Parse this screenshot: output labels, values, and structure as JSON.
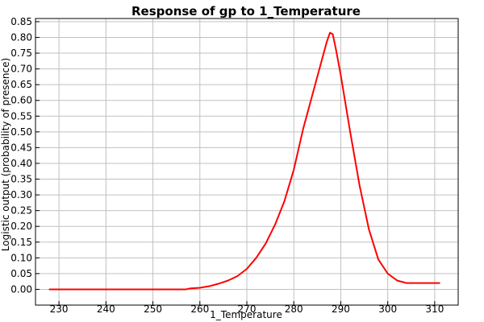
{
  "chart_data": {
    "type": "line",
    "title": "Response of gp to 1_Temperature",
    "xlabel": "1_Temperature",
    "ylabel": "Logistic output (probability of presence)",
    "xlim": [
      225,
      315
    ],
    "ylim": [
      -0.05,
      0.86
    ],
    "x_ticks": [
      "230",
      "240",
      "250",
      "260",
      "270",
      "280",
      "290",
      "300",
      "310"
    ],
    "y_ticks": [
      "0.00",
      "0.05",
      "0.10",
      "0.15",
      "0.20",
      "0.25",
      "0.30",
      "0.35",
      "0.40",
      "0.45",
      "0.50",
      "0.55",
      "0.60",
      "0.65",
      "0.70",
      "0.75",
      "0.80",
      "0.85"
    ],
    "grid": true,
    "series": [
      {
        "color": "#ff0000",
        "x": [
          228,
          240,
          250,
          257,
          258,
          260,
          262,
          264,
          266,
          268,
          270,
          272,
          274,
          276,
          278,
          280,
          282,
          284,
          286,
          287,
          287.7,
          288.3,
          289,
          290,
          291,
          292,
          294,
          296,
          298,
          300,
          302,
          304,
          306,
          308,
          311
        ],
        "y": [
          0.0,
          0.0,
          0.0,
          0.0,
          0.003,
          0.005,
          0.01,
          0.018,
          0.028,
          0.042,
          0.065,
          0.1,
          0.145,
          0.205,
          0.28,
          0.38,
          0.51,
          0.62,
          0.73,
          0.785,
          0.815,
          0.81,
          0.76,
          0.68,
          0.59,
          0.5,
          0.33,
          0.19,
          0.095,
          0.05,
          0.028,
          0.02,
          0.02,
          0.02,
          0.02
        ]
      }
    ]
  }
}
